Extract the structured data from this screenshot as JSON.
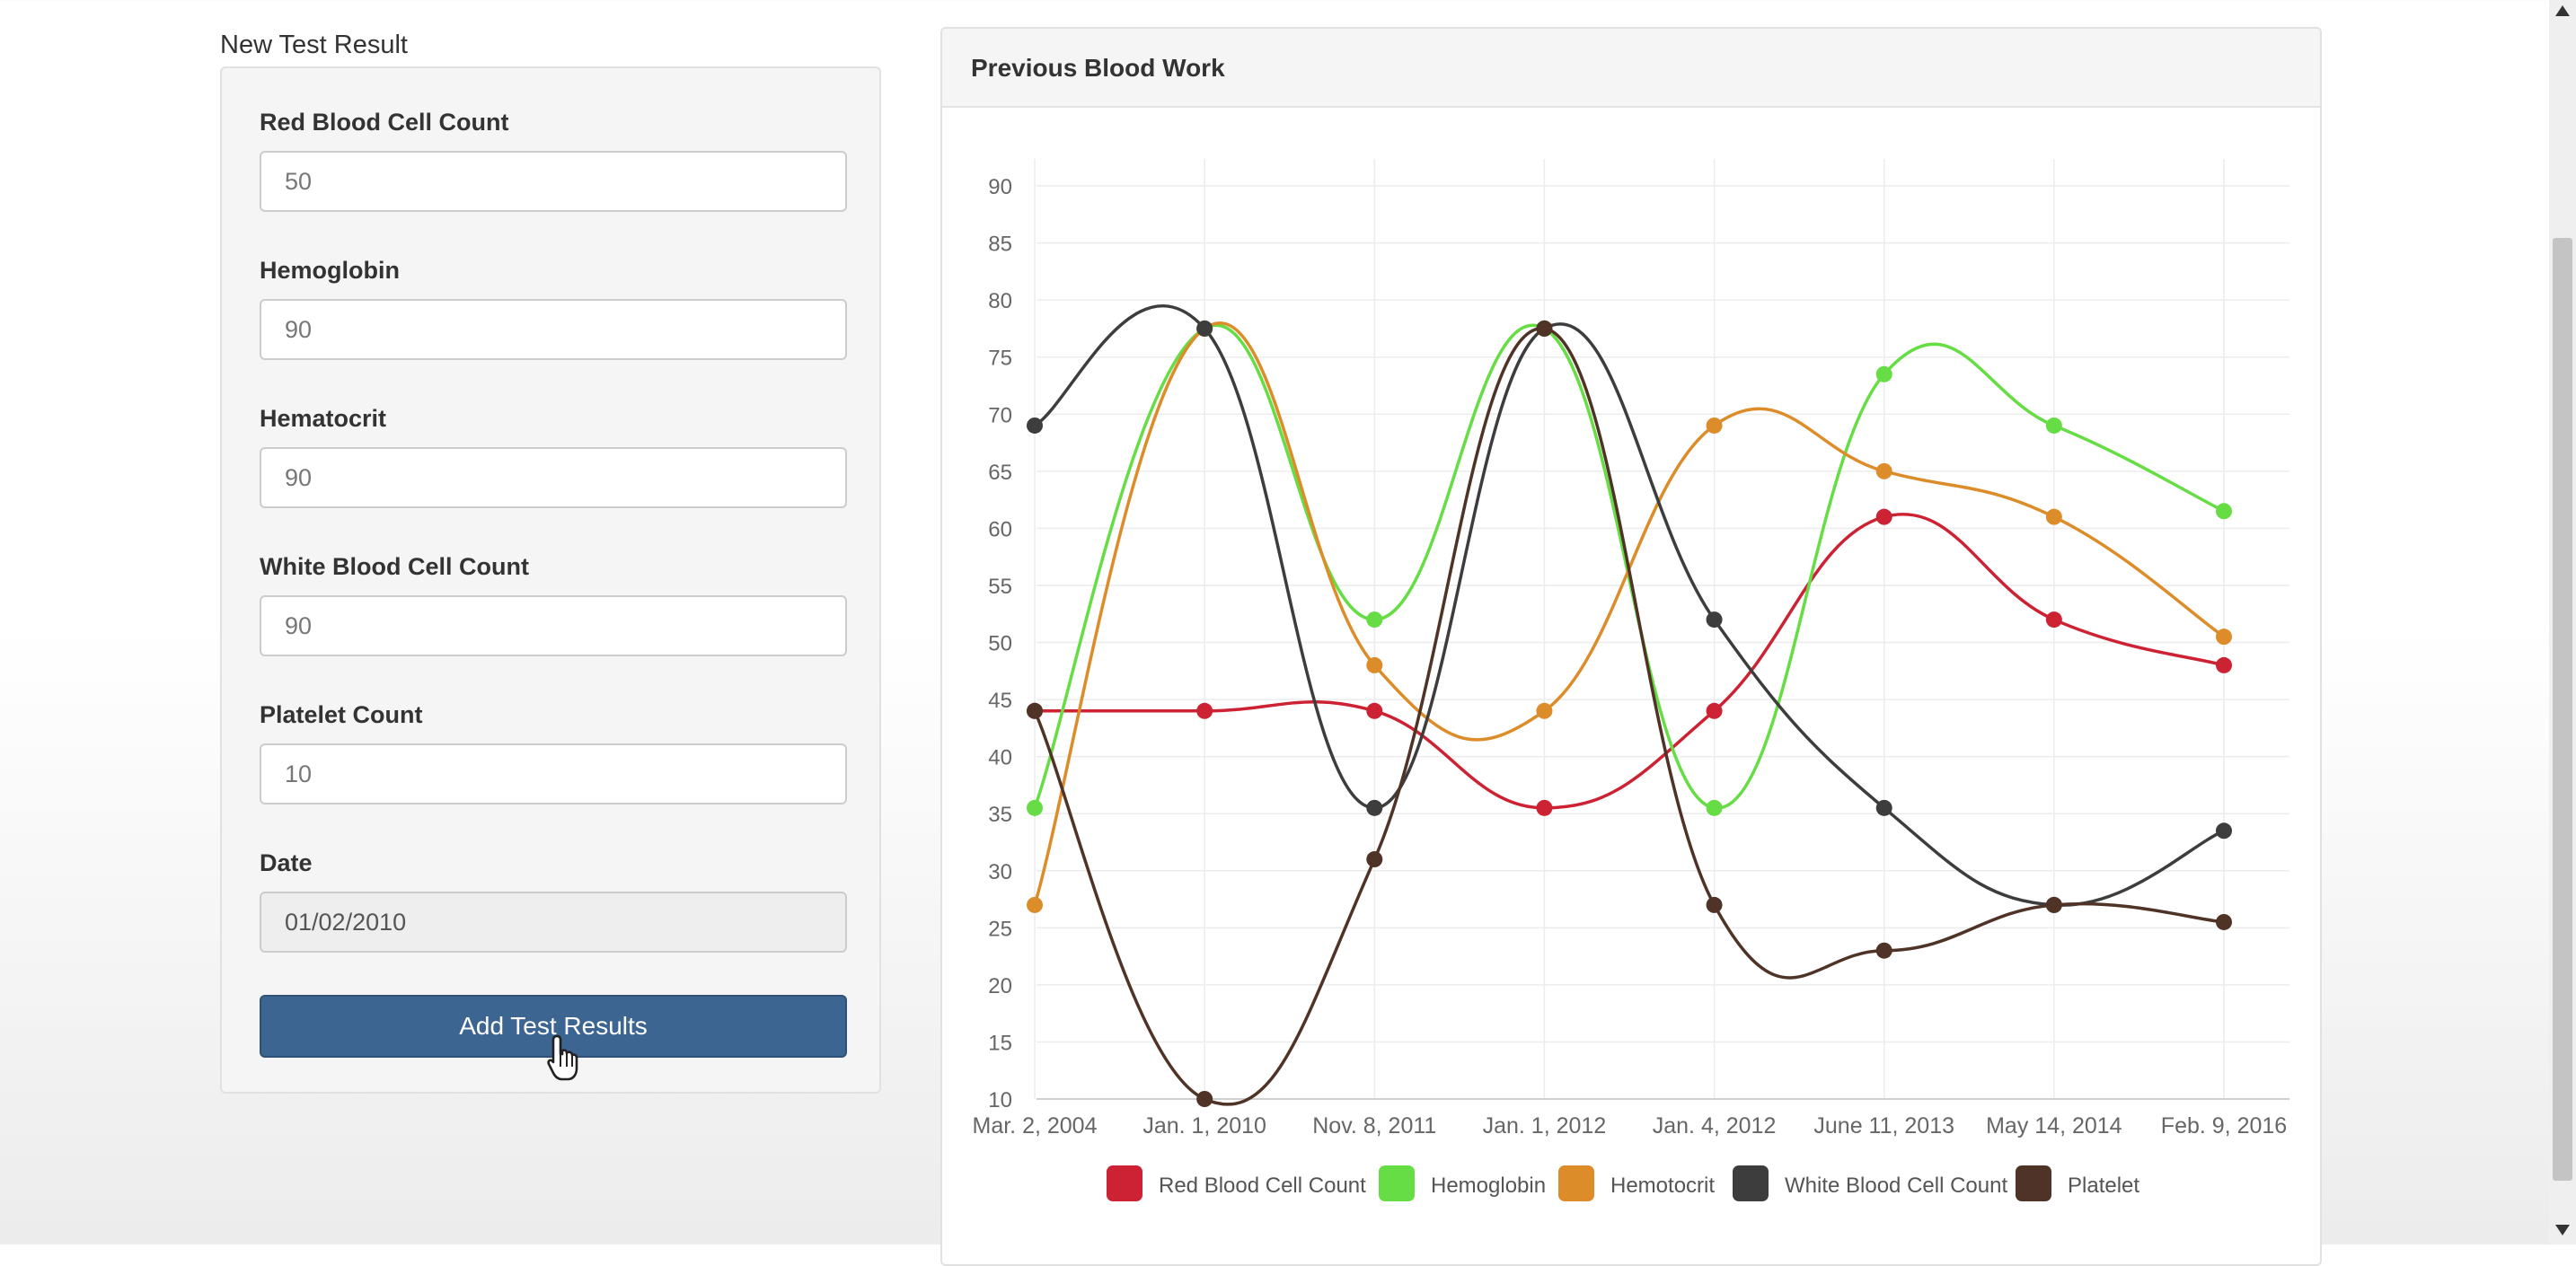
{
  "form": {
    "title": "New Test Result",
    "fields": [
      {
        "label": "Red Blood Cell Count",
        "value": "50"
      },
      {
        "label": "Hemoglobin",
        "value": "90"
      },
      {
        "label": "Hematocrit",
        "value": "90"
      },
      {
        "label": "White Blood Cell Count",
        "value": "90"
      },
      {
        "label": "Platelet Count",
        "value": "10"
      },
      {
        "label": "Date",
        "value": "01/02/2010"
      }
    ],
    "submit_label": "Add Test Results"
  },
  "chart_panel": {
    "title": "Previous Blood Work"
  },
  "chart_data": {
    "type": "line",
    "title": "Previous Blood Work",
    "categories": [
      "Mar. 2, 2004",
      "Jan. 1, 2010",
      "Nov. 8, 2011",
      "Jan. 1, 2012",
      "Jan. 4, 2012",
      "June 11, 2013",
      "May 14, 2014",
      "Feb. 9, 2016"
    ],
    "ylim": [
      10,
      90
    ],
    "yticks": [
      10,
      15,
      20,
      25,
      30,
      35,
      40,
      45,
      50,
      55,
      60,
      65,
      70,
      75,
      80,
      85,
      90
    ],
    "legend_position": "bottom",
    "series": [
      {
        "name": "Red Blood Cell Count",
        "legend_label": "Red Blood Cell Count",
        "color": "#cc2233",
        "values": [
          44,
          44,
          44,
          35.5,
          44,
          61,
          52,
          48
        ]
      },
      {
        "name": "Hemoglobin",
        "legend_label": "Hemoglobin",
        "color": "#66dd44",
        "values": [
          35.5,
          77.5,
          52,
          77.5,
          35.5,
          73.5,
          69,
          61.5
        ]
      },
      {
        "name": "Hematocrit",
        "legend_label": "Hemotocrit",
        "color": "#dd8c2a",
        "values": [
          27,
          77.5,
          48,
          44,
          69,
          65,
          61,
          50.5
        ]
      },
      {
        "name": "White Blood Cell Count",
        "legend_label": "White Blood Cell Count",
        "color": "#3d3d3d",
        "values": [
          69,
          77.5,
          35.5,
          77.5,
          52,
          35.5,
          27,
          33.5
        ]
      },
      {
        "name": "Platelet",
        "legend_label": "Platelet",
        "color": "#4f3326",
        "values": [
          44,
          10,
          31,
          77.5,
          27,
          23,
          27,
          25.5
        ]
      }
    ]
  }
}
